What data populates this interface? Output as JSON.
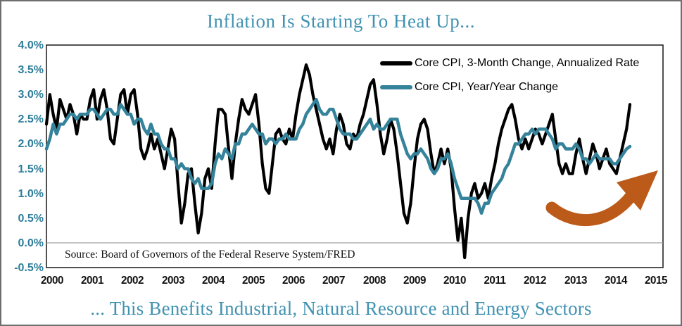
{
  "window": {
    "background": "#ffffff",
    "frame_border_color": "#6e6e6e"
  },
  "header": {
    "title": "Inflation Is Starting To Heat Up...",
    "title_color": "#4192b2"
  },
  "footer": {
    "caption": "... This Benefits Industrial, Natural Resource and Energy Sectors",
    "caption_color": "#4192b2"
  },
  "axis_style": {
    "y_label_color": "#2e7d9b",
    "x_label_color": "#111111",
    "plot_border_color": "#262626",
    "zero_gridline_color": "#999999"
  },
  "chart_data": {
    "type": "line",
    "title": "Inflation Is Starting To Heat Up...",
    "xlabel": "",
    "ylabel": "",
    "ylim": [
      -0.5,
      4.0
    ],
    "y_tick_step": 0.5,
    "y_tick_labels": [
      "4.0%",
      "3.5%",
      "3.0%",
      "2.5%",
      "2.0%",
      "1.5%",
      "1.0%",
      "0.5%",
      "0.0%",
      "-0.5%"
    ],
    "x_tick_labels": [
      "2000",
      "2001",
      "2002",
      "2003",
      "2004",
      "2005",
      "2006",
      "2007",
      "2008",
      "2009",
      "2010",
      "2011",
      "2012",
      "2013",
      "2014",
      "2015"
    ],
    "x_start": "2000-01",
    "frequency": "monthly",
    "grid": "horizontal line at 0.0% only",
    "legend_position": "top-right inside plot",
    "source_note": "Source: Board of Governors of the Federal Reserve System/FRED",
    "annotation": {
      "shape": "curved-up-arrow",
      "color": "#bc5a1a",
      "location": "bottom-right of plot, pointing up and to the right"
    },
    "series": [
      {
        "name": "Core CPI, 3-Month Change, Annualized Rate",
        "color": "#000000",
        "line_width": 4.2,
        "values": [
          2.4,
          3.0,
          2.6,
          2.3,
          2.9,
          2.7,
          2.5,
          2.8,
          2.6,
          2.2,
          2.6,
          2.5,
          2.5,
          2.9,
          3.1,
          2.5,
          2.9,
          3.1,
          2.7,
          2.1,
          2.0,
          2.5,
          3.0,
          3.1,
          2.6,
          3.0,
          3.1,
          2.6,
          1.9,
          1.7,
          1.9,
          2.2,
          1.9,
          2.1,
          1.8,
          1.5,
          1.9,
          2.3,
          2.1,
          1.2,
          0.4,
          0.8,
          1.4,
          1.5,
          0.8,
          0.2,
          0.6,
          1.3,
          1.5,
          1.1,
          2.0,
          2.7,
          2.7,
          2.6,
          1.9,
          1.3,
          2.0,
          2.5,
          2.9,
          2.7,
          2.6,
          2.8,
          3.0,
          2.4,
          1.6,
          1.1,
          1.0,
          1.6,
          2.2,
          2.3,
          2.1,
          2.0,
          2.3,
          2.1,
          2.6,
          3.0,
          3.3,
          3.6,
          3.4,
          3.0,
          2.7,
          2.4,
          2.1,
          1.9,
          2.1,
          1.8,
          2.3,
          2.6,
          2.4,
          2.0,
          1.9,
          2.2,
          2.1,
          2.4,
          2.6,
          2.9,
          3.2,
          3.3,
          2.8,
          2.2,
          1.8,
          2.1,
          2.5,
          2.3,
          1.8,
          1.2,
          0.6,
          0.4,
          0.8,
          1.5,
          2.1,
          2.4,
          2.5,
          2.3,
          1.8,
          1.4,
          1.6,
          1.9,
          1.6,
          1.9,
          1.5,
          0.7,
          0.05,
          0.5,
          -0.3,
          0.5,
          1.0,
          1.2,
          0.9,
          1.0,
          1.2,
          0.9,
          1.3,
          1.6,
          2.0,
          2.3,
          2.5,
          2.7,
          2.8,
          2.5,
          2.1,
          1.9,
          2.1,
          1.9,
          2.1,
          2.3,
          2.2,
          2.0,
          2.2,
          2.4,
          2.6,
          2.1,
          1.6,
          1.4,
          1.6,
          1.4,
          1.4,
          1.8,
          2.1,
          1.7,
          1.4,
          1.7,
          2.0,
          1.8,
          1.5,
          1.7,
          1.9,
          1.6,
          1.5,
          1.4,
          1.7,
          2.0,
          2.3,
          2.8
        ]
      },
      {
        "name": "Core CPI, Year/Year Change",
        "color": "#35829b",
        "line_width": 4.5,
        "values": [
          1.9,
          2.1,
          2.4,
          2.2,
          2.4,
          2.4,
          2.5,
          2.6,
          2.6,
          2.5,
          2.6,
          2.6,
          2.6,
          2.7,
          2.7,
          2.6,
          2.5,
          2.6,
          2.7,
          2.7,
          2.6,
          2.6,
          2.8,
          2.7,
          2.6,
          2.6,
          2.4,
          2.5,
          2.5,
          2.3,
          2.2,
          2.4,
          2.2,
          2.2,
          2.0,
          1.9,
          1.9,
          1.7,
          1.7,
          1.5,
          1.6,
          1.5,
          1.5,
          1.3,
          1.2,
          1.3,
          1.1,
          1.1,
          1.1,
          1.2,
          1.6,
          1.8,
          1.7,
          1.9,
          1.8,
          1.7,
          2.0,
          2.0,
          2.2,
          2.2,
          2.3,
          2.4,
          2.3,
          2.2,
          2.2,
          2.0,
          2.1,
          2.1,
          2.0,
          2.1,
          2.1,
          2.2,
          2.1,
          2.1,
          2.1,
          2.3,
          2.4,
          2.6,
          2.7,
          2.8,
          2.9,
          2.7,
          2.6,
          2.6,
          2.7,
          2.7,
          2.5,
          2.3,
          2.2,
          2.2,
          2.2,
          2.1,
          2.1,
          2.2,
          2.3,
          2.4,
          2.5,
          2.3,
          2.4,
          2.3,
          2.3,
          2.4,
          2.5,
          2.5,
          2.5,
          2.2,
          2.0,
          1.8,
          1.7,
          1.8,
          1.8,
          1.9,
          1.8,
          1.7,
          1.5,
          1.4,
          1.5,
          1.7,
          1.7,
          1.8,
          1.6,
          1.3,
          1.1,
          0.9,
          0.9,
          0.9,
          0.9,
          0.9,
          0.8,
          0.6,
          0.8,
          0.8,
          1.0,
          1.1,
          1.2,
          1.3,
          1.5,
          1.6,
          1.8,
          2.0,
          2.0,
          2.1,
          2.2,
          2.2,
          2.3,
          2.2,
          2.3,
          2.3,
          2.3,
          2.2,
          2.1,
          1.9,
          2.0,
          2.0,
          1.9,
          1.9,
          1.9,
          2.0,
          1.9,
          1.7,
          1.7,
          1.6,
          1.7,
          1.8,
          1.7,
          1.7,
          1.7,
          1.7,
          1.6,
          1.6,
          1.7,
          1.8,
          1.9,
          1.95
        ]
      }
    ]
  }
}
